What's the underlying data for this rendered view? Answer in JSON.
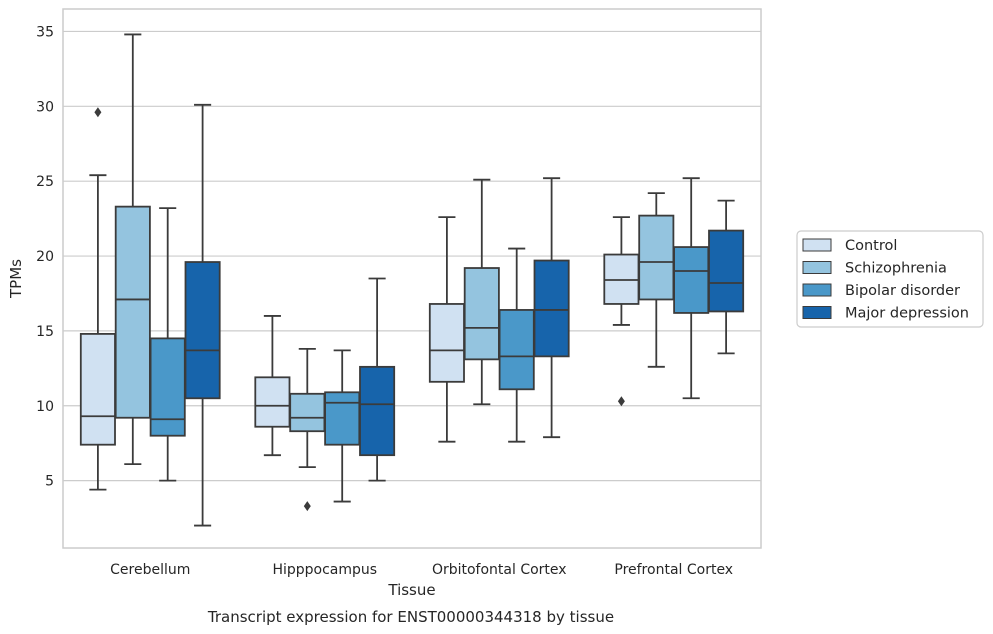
{
  "chart_data": {
    "type": "box",
    "xlabel": "Tissue",
    "ylabel": "TPMs",
    "caption": "Transcript expression for ENST00000344318 by tissue",
    "ylim": [
      0.5,
      36.5
    ],
    "yticks": [
      5,
      10,
      15,
      20,
      25,
      30,
      35
    ],
    "grid": "horizontal",
    "legend_position": "right",
    "categories": [
      "Cerebellum",
      "Hipppocampus",
      "Orbitofontal Cortex",
      "Prefrontal Cortex"
    ],
    "series": [
      {
        "name": "Control",
        "color": "#d0e1f2",
        "boxes": [
          {
            "whislo": 4.4,
            "q1": 7.4,
            "med": 9.3,
            "q3": 14.8,
            "whishi": 25.4,
            "fliers": [
              29.6
            ]
          },
          {
            "whislo": 6.7,
            "q1": 8.6,
            "med": 10.0,
            "q3": 11.9,
            "whishi": 16.0,
            "fliers": []
          },
          {
            "whislo": 7.6,
            "q1": 11.6,
            "med": 13.7,
            "q3": 16.8,
            "whishi": 22.6,
            "fliers": []
          },
          {
            "whislo": 15.4,
            "q1": 16.8,
            "med": 18.4,
            "q3": 20.1,
            "whishi": 22.6,
            "fliers": [
              10.3
            ]
          }
        ]
      },
      {
        "name": "Schizophrenia",
        "color": "#94c4df",
        "boxes": [
          {
            "whislo": 6.1,
            "q1": 9.2,
            "med": 17.1,
            "q3": 23.3,
            "whishi": 34.8,
            "fliers": []
          },
          {
            "whislo": 5.9,
            "q1": 8.3,
            "med": 9.2,
            "q3": 10.8,
            "whishi": 13.8,
            "fliers": [
              3.3
            ]
          },
          {
            "whislo": 10.1,
            "q1": 13.1,
            "med": 15.2,
            "q3": 19.2,
            "whishi": 25.1,
            "fliers": []
          },
          {
            "whislo": 12.6,
            "q1": 17.1,
            "med": 19.6,
            "q3": 22.7,
            "whishi": 24.2,
            "fliers": []
          }
        ]
      },
      {
        "name": "Bipolar disorder",
        "color": "#4a98c9",
        "boxes": [
          {
            "whislo": 5.0,
            "q1": 8.0,
            "med": 9.1,
            "q3": 14.5,
            "whishi": 23.2,
            "fliers": []
          },
          {
            "whislo": 3.6,
            "q1": 7.4,
            "med": 10.2,
            "q3": 10.9,
            "whishi": 13.7,
            "fliers": []
          },
          {
            "whislo": 7.6,
            "q1": 11.1,
            "med": 13.3,
            "q3": 16.4,
            "whishi": 20.5,
            "fliers": []
          },
          {
            "whislo": 10.5,
            "q1": 16.2,
            "med": 19.0,
            "q3": 20.6,
            "whishi": 25.2,
            "fliers": []
          }
        ]
      },
      {
        "name": "Major depression",
        "color": "#1764ab",
        "boxes": [
          {
            "whislo": 2.0,
            "q1": 10.5,
            "med": 13.7,
            "q3": 19.6,
            "whishi": 30.1,
            "fliers": []
          },
          {
            "whislo": 5.0,
            "q1": 6.7,
            "med": 10.1,
            "q3": 12.6,
            "whishi": 18.5,
            "fliers": []
          },
          {
            "whislo": 7.9,
            "q1": 13.3,
            "med": 16.4,
            "q3": 19.7,
            "whishi": 25.2,
            "fliers": []
          },
          {
            "whislo": 13.5,
            "q1": 16.3,
            "med": 18.2,
            "q3": 21.7,
            "whishi": 23.7,
            "fliers": []
          }
        ]
      }
    ]
  }
}
